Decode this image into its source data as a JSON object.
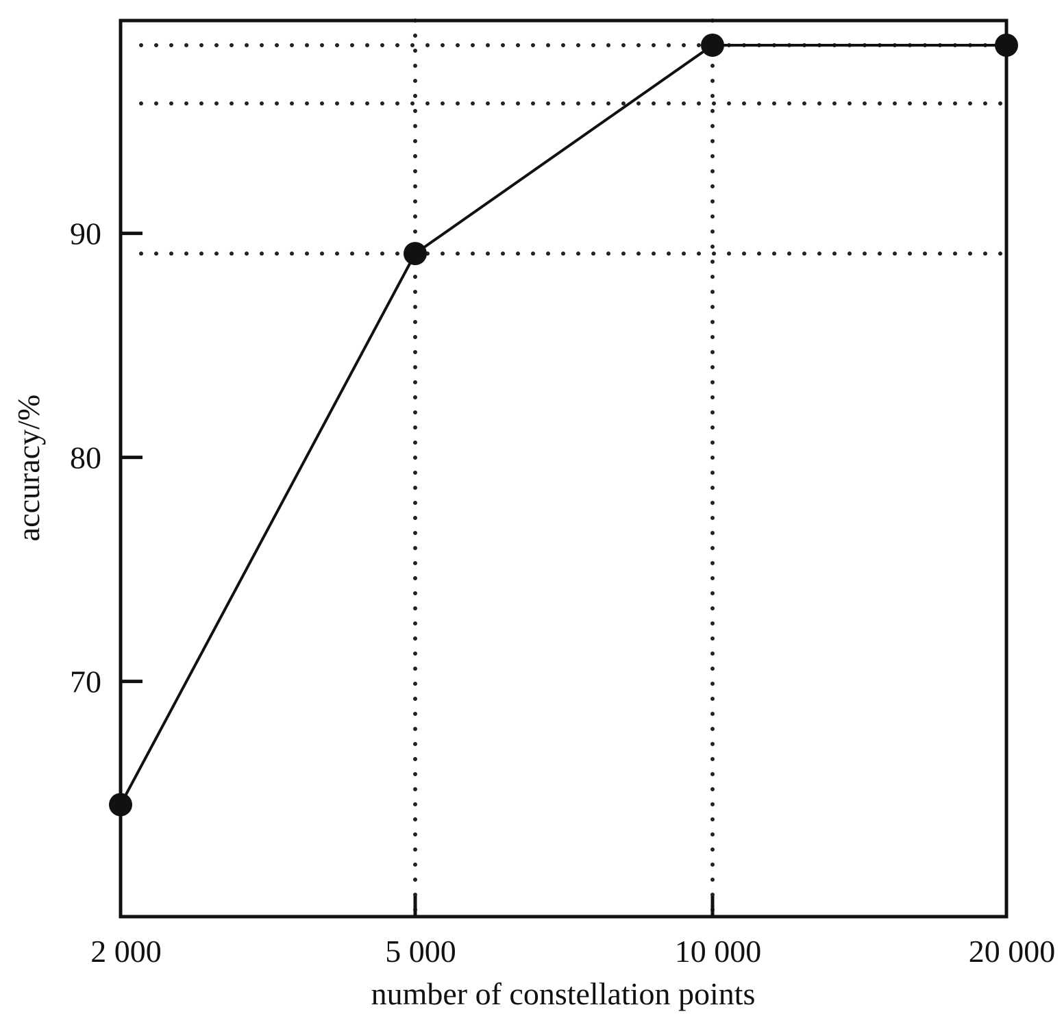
{
  "chart_data": {
    "type": "line",
    "xlabel": "number of constellation points",
    "ylabel": "accuracy/%",
    "categories": [
      "2 000",
      "5 000",
      "10 000",
      "20 000"
    ],
    "yticks": [
      70,
      80,
      90
    ],
    "ylim": [
      59.5,
      99.5
    ],
    "grid": "dotted",
    "series": [
      {
        "values": [
          64.5,
          89.1,
          98.4,
          98.4
        ]
      }
    ],
    "colors": {
      "line": "#111111",
      "grid": "#222222",
      "axis": "#111111"
    }
  }
}
